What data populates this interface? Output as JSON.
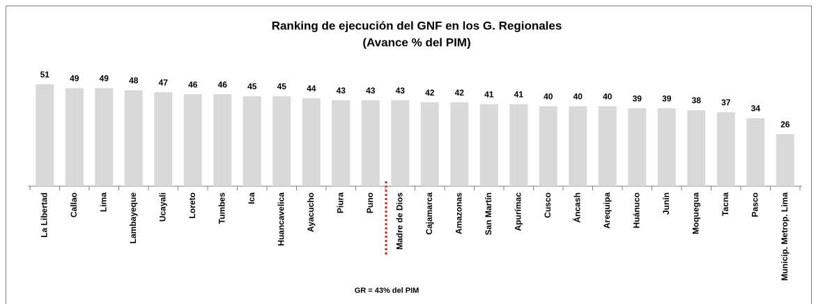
{
  "chart_data": {
    "type": "bar",
    "title": "Ranking de ejecución del GNF en los G. Regionales",
    "subtitle": "(Avance % del PIM)",
    "annotation": "GR = 43% del PIM",
    "categories": [
      "La Libertad",
      "Callao",
      "Lima",
      "Lambayeque",
      "Ucayali",
      "Loreto",
      "Tumbes",
      "Ica",
      "Huancavelica",
      "Ayacucho",
      "Piura",
      "Puno",
      "Madre de Dios",
      "Cajamarca",
      "Amazonas",
      "San Martín",
      "Apurímac",
      "Cusco",
      "Áncash",
      "Arequipa",
      "Huánuco",
      "Junín",
      "Moquegua",
      "Tacna",
      "Pasco",
      "Municip. Metrop. Lima"
    ],
    "values": [
      51,
      49,
      49,
      48,
      47,
      46,
      46,
      45,
      45,
      44,
      43,
      43,
      43,
      42,
      42,
      41,
      41,
      40,
      40,
      40,
      39,
      39,
      38,
      37,
      34,
      26
    ],
    "color": "#d9d9d9",
    "ylim": [
      0,
      60
    ]
  }
}
